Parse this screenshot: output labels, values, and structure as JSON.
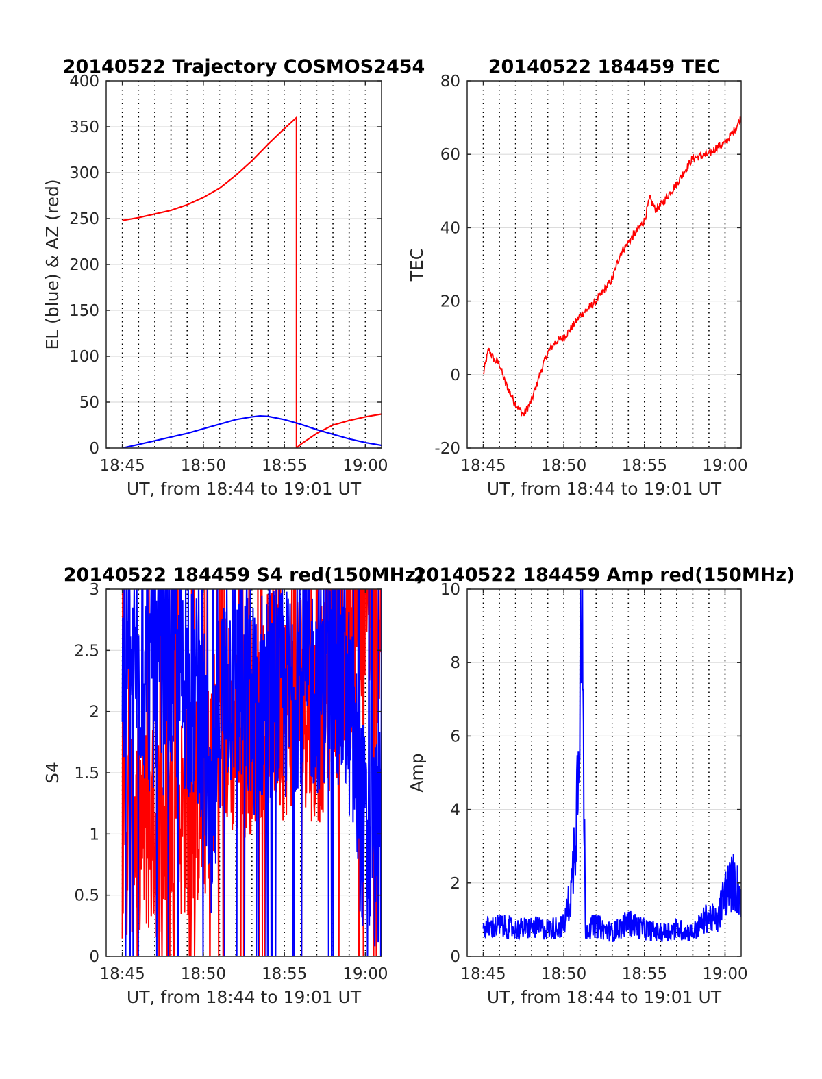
{
  "colors": {
    "red": "#ff0000",
    "blue": "#0000ff",
    "grid": "#dcdcdc",
    "axis": "#262626"
  },
  "chart_data": [
    {
      "type": "line",
      "title": "20140522 Trajectory COSMOS2454",
      "xlabel": "UT, from 18:44 to 19:01 UT",
      "ylabel": "EL (blue) & AZ (red)",
      "xlim": [
        "18:44",
        "19:01"
      ],
      "ylim": [
        0,
        400
      ],
      "xticks": [
        "18:45",
        "18:50",
        "18:55",
        "19:00"
      ],
      "yticks": [
        "0",
        "50",
        "100",
        "150",
        "200",
        "250",
        "300",
        "350",
        "400"
      ],
      "grid": "on",
      "minute_gridlines": "dotted",
      "series": [
        {
          "color": "red",
          "x": [
            "18:45",
            "18:46",
            "18:47",
            "18:48",
            "18:49",
            "18:50",
            "18:51",
            "18:52",
            "18:53",
            "18:54",
            "18:55",
            "18:55:45",
            "18:55:46",
            "18:56",
            "18:57",
            "18:58",
            "18:59",
            "19:00",
            "19:01"
          ],
          "y": [
            248,
            251,
            255,
            259,
            265,
            273,
            283,
            297,
            313,
            331,
            348,
            360,
            0,
            4,
            16,
            25,
            30,
            34,
            37
          ]
        },
        {
          "color": "blue",
          "x": [
            "18:45",
            "18:46",
            "18:47",
            "18:48",
            "18:49",
            "18:50",
            "18:51",
            "18:52",
            "18:53",
            "18:53:30",
            "18:54",
            "18:55",
            "18:56",
            "18:57",
            "18:58",
            "18:59",
            "19:00",
            "19:01"
          ],
          "y": [
            0,
            4,
            8,
            12,
            16,
            21,
            26,
            31,
            34,
            35,
            34.5,
            31,
            26,
            20,
            15,
            10,
            6,
            3
          ]
        }
      ]
    },
    {
      "type": "line",
      "title": "20140522 184459 TEC",
      "xlabel": "UT, from 18:44 to 19:01 UT",
      "ylabel": "TEC",
      "xlim": [
        "18:44",
        "19:01"
      ],
      "ylim": [
        -20,
        80
      ],
      "xticks": [
        "18:45",
        "18:50",
        "18:55",
        "19:00"
      ],
      "yticks": [
        "-20",
        "0",
        "20",
        "40",
        "60",
        "80"
      ],
      "grid": "on",
      "minute_gridlines": "dotted",
      "series": [
        {
          "color": "red",
          "x": [
            "18:45",
            "18:45:20",
            "18:45:40",
            "18:46",
            "18:46:20",
            "18:46:40",
            "18:47",
            "18:47:30",
            "18:48",
            "18:48:30",
            "18:49",
            "18:49:30",
            "18:50",
            "18:50:30",
            "18:51",
            "18:52",
            "18:53",
            "18:53:30",
            "18:54",
            "18:55",
            "18:55:20",
            "18:55:40",
            "18:56",
            "18:57",
            "18:58",
            "18:59",
            "18:59:30",
            "19:00",
            "19:00:30",
            "19:01"
          ],
          "y": [
            0,
            7,
            4,
            3,
            -2,
            -5,
            -8,
            -11,
            -7,
            0,
            6,
            9,
            10,
            13,
            16,
            20,
            26,
            33,
            36,
            42,
            48,
            45,
            46,
            52,
            59,
            60,
            62,
            63,
            66,
            70
          ]
        }
      ]
    },
    {
      "type": "line",
      "title": "20140522 184459 S4 red(150MHz)",
      "xlabel": "UT, from 18:44 to 19:01 UT",
      "ylabel": "S4",
      "xlim": [
        "18:44",
        "19:01"
      ],
      "ylim": [
        0,
        3
      ],
      "xticks": [
        "18:45",
        "18:50",
        "18:55",
        "19:00"
      ],
      "yticks": [
        "0",
        "0.5",
        "1",
        "1.5",
        "2",
        "2.5",
        "3"
      ],
      "grid": "on",
      "minute_gridlines": "dotted",
      "series": [
        {
          "color": "red",
          "x": [
            "18:45",
            "18:46",
            "18:47",
            "18:48",
            "18:49",
            "18:50",
            "18:50:30",
            "18:51",
            "18:52",
            "18:53",
            "18:54",
            "18:55",
            "18:56",
            "18:57",
            "18:58",
            "18:59",
            "19:00",
            "19:01"
          ],
          "y": [
            1.0,
            1.1,
            1.0,
            1.1,
            1.2,
            1.3,
            1.5,
            2.0,
            1.8,
            1.9,
            2.1,
            2.0,
            2.2,
            1.9,
            2.3,
            2.5,
            2.7,
            2.8
          ]
        },
        {
          "color": "blue",
          "x": [
            "18:45",
            "18:46",
            "18:47",
            "18:48",
            "18:49",
            "18:50",
            "18:50:30",
            "18:51",
            "18:52",
            "18:53",
            "18:54",
            "18:55",
            "18:56",
            "18:57",
            "18:58",
            "18:59",
            "19:00",
            "19:01"
          ],
          "y": [
            2.2,
            2.4,
            2.1,
            2.3,
            2.2,
            2.0,
            0.7,
            2.1,
            2.3,
            2.0,
            2.2,
            2.1,
            2.3,
            2.2,
            2.4,
            2.0,
            0.9,
            0.95
          ]
        }
      ]
    },
    {
      "type": "line",
      "title": "20140522 184459 Amp red(150MHz)",
      "xlabel": "UT, from 18:44 to 19:01 UT",
      "ylabel": "Amp",
      "xlim": [
        "18:44",
        "19:01"
      ],
      "ylim": [
        0,
        10
      ],
      "xticks": [
        "18:45",
        "18:50",
        "18:55",
        "19:00"
      ],
      "yticks": [
        "0",
        "2",
        "4",
        "6",
        "8",
        "10"
      ],
      "grid": "on",
      "minute_gridlines": "dotted",
      "series": [
        {
          "color": "blue",
          "x": [
            "18:45",
            "18:46",
            "18:47",
            "18:48",
            "18:49",
            "18:50",
            "18:50:30",
            "18:50:50",
            "18:51",
            "18:51:10",
            "18:51:20",
            "18:52",
            "18:53",
            "18:54",
            "18:55",
            "18:56",
            "18:57",
            "18:58",
            "18:59",
            "18:59:30",
            "19:00",
            "19:00:30",
            "19:01"
          ],
          "y": [
            0.8,
            0.9,
            0.8,
            0.85,
            0.8,
            0.9,
            2.0,
            5.0,
            9.5,
            8.8,
            0.8,
            0.9,
            0.7,
            1.0,
            0.8,
            0.7,
            0.8,
            0.7,
            1.2,
            1.0,
            1.9,
            2.2,
            1.8
          ]
        },
        {
          "color": "red",
          "x": [
            "18:50:30",
            "18:51:20"
          ],
          "y": [
            0,
            0
          ]
        }
      ]
    }
  ]
}
